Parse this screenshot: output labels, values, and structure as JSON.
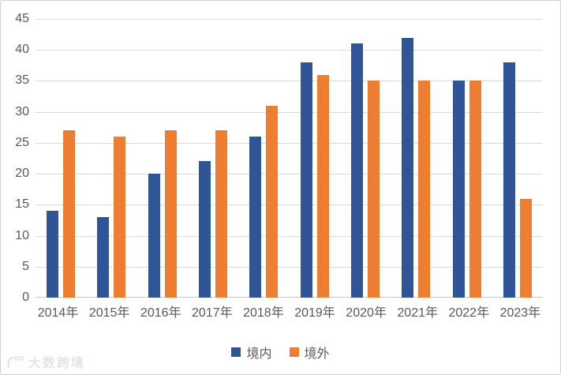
{
  "chart_data": {
    "type": "bar",
    "title": "",
    "xlabel": "",
    "ylabel": "",
    "categories": [
      "2014年",
      "2015年",
      "2016年",
      "2017年",
      "2018年",
      "2019年",
      "2020年",
      "2021年",
      "2022年",
      "2023年"
    ],
    "series": [
      {
        "name": "境内",
        "color": "#2F5597",
        "values": [
          14,
          13,
          20,
          22,
          26,
          38,
          41,
          42,
          35,
          38
        ]
      },
      {
        "name": "境外",
        "color": "#ED7D31",
        "values": [
          27,
          26,
          27,
          27,
          31,
          36,
          35,
          35,
          35,
          16
        ]
      }
    ],
    "ylim": [
      0,
      45
    ],
    "yticks": [
      0,
      5,
      10,
      15,
      20,
      25,
      30,
      35,
      40,
      45
    ],
    "grid": true,
    "legend_position": "bottom"
  },
  "watermark": {
    "text": "大数跨境"
  },
  "style": {
    "axis_text_color": "#595959",
    "gridline_color": "#D9D9D9",
    "axis_line_color": "#C6C6C6",
    "background": "#FFFFFF",
    "border_color": "#D0D0D0",
    "watermark_color": "#E4E4E4"
  }
}
